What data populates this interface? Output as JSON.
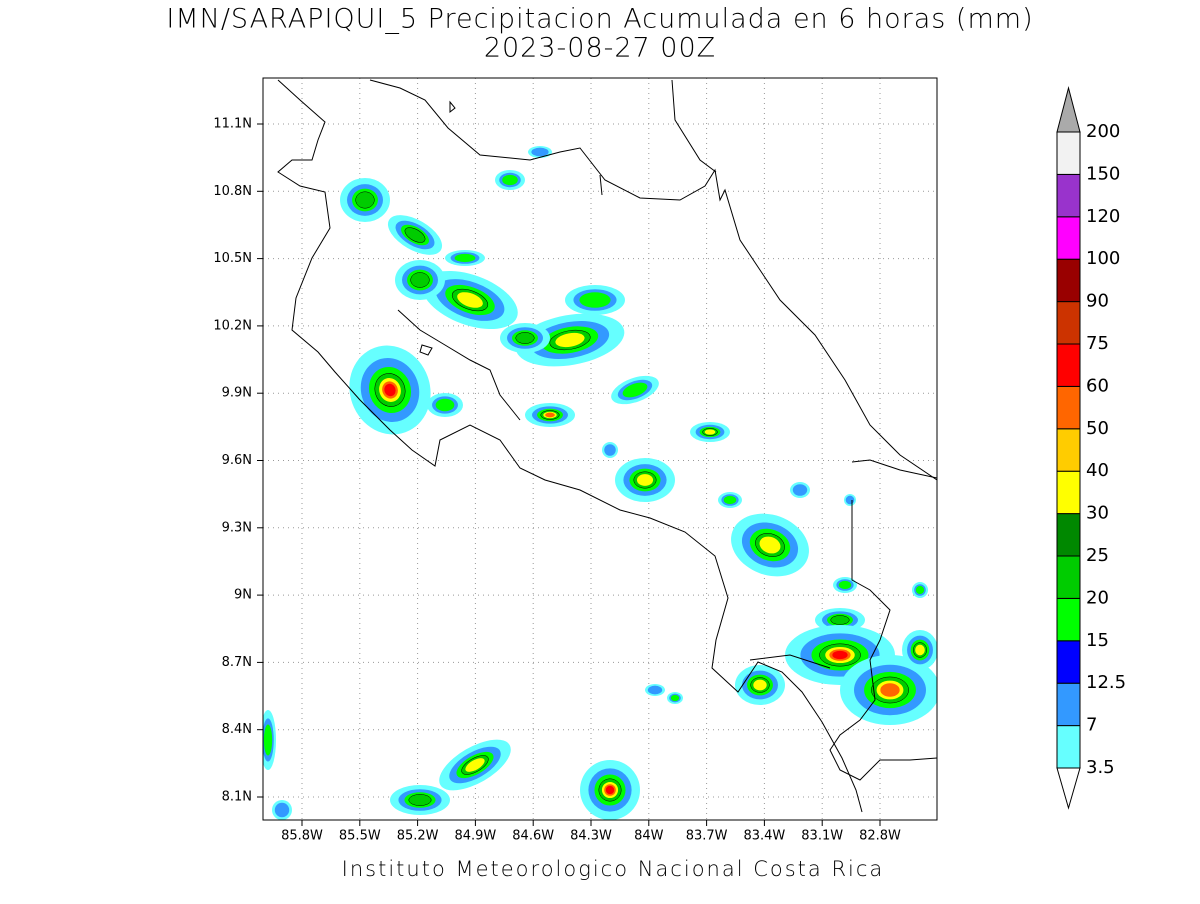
{
  "title": "IMN/SARAPIQUI_5 Precipitacion Acumulada en 6 horas (mm)",
  "subtitle": "2023-08-27 00Z",
  "longitude_ticks": [
    "85.8W",
    "85.5W",
    "85.2W",
    "84.9W",
    "84.6W",
    "84.3W",
    "84W",
    "83.7W",
    "83.4W",
    "83.1W",
    "82.8W"
  ],
  "latitude_ticks": [
    "11.1N",
    "10.8N",
    "10.5N",
    "10.2N",
    "9.9N",
    "9.6N",
    "9.3N",
    "9N",
    "8.7N",
    "8.4N",
    "8.1N"
  ],
  "colorbar": {
    "levels": [
      3.5,
      7,
      12.5,
      15,
      20,
      25,
      30,
      40,
      50,
      60,
      75,
      90,
      100,
      120,
      150,
      200
    ],
    "colors": [
      "#ffffff",
      "#66ffff",
      "#3399ff",
      "#0000ff",
      "#00ff00",
      "#00cc00",
      "#008800",
      "#ffff00",
      "#ffcc00",
      "#ff6600",
      "#ff0000",
      "#cc3300",
      "#990000",
      "#ff00ff",
      "#9933cc",
      "#f2f2f2",
      "#aaaaaa"
    ]
  },
  "footer": "Instituto Meteorologico Nacional Costa Rica"
}
